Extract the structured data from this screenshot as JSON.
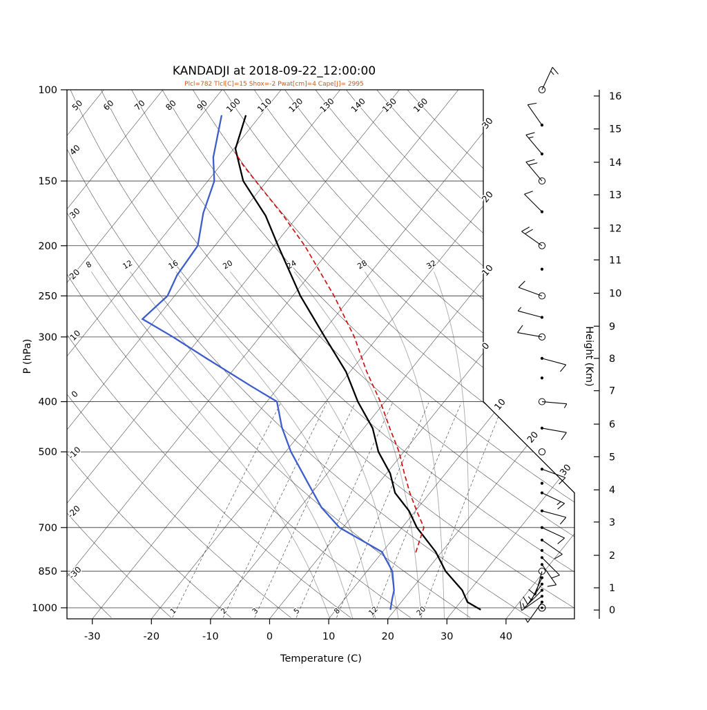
{
  "title": "KANDADJI at 2018-09-22_12:00:00",
  "station": "KANDADJI",
  "datetime": "2018-09-22_12:00:00",
  "params_line": "Plcl=782 Tlcl[C]=15 Shox=-2 Pwat[cm]=4 Cape[J]= 2995",
  "indices": {
    "plcl": 782,
    "tlcl_c": 15,
    "shox": -2,
    "pwat_cm": 4,
    "cape_j": 2995
  },
  "colors": {
    "temperature": "#000000",
    "dewpoint": "#3c5ccc",
    "parcel": "#cc1111",
    "params_text": "#c05a1e",
    "moist_adiabat": "#a8a8a8",
    "grid": "#3c3c3c"
  },
  "axes": {
    "pressure": {
      "title": "P (hPa)",
      "ticks": [
        100,
        150,
        200,
        250,
        300,
        400,
        500,
        700,
        850,
        1000
      ]
    },
    "temperature": {
      "title": "Temperature (C)",
      "ticks": [
        -30,
        -20,
        -10,
        0,
        10,
        20,
        30,
        40
      ]
    },
    "height": {
      "title": "Height (Km)",
      "ticks": [
        [
          0,
          1010
        ],
        [
          1,
          915
        ],
        [
          2,
          792
        ],
        [
          3,
          683
        ],
        [
          4,
          592
        ],
        [
          5,
          511
        ],
        [
          6,
          442
        ],
        [
          7,
          381
        ],
        [
          8,
          330
        ],
        [
          9,
          286
        ],
        [
          10,
          247
        ],
        [
          11,
          213
        ],
        [
          12,
          185
        ],
        [
          13,
          159.5
        ],
        [
          14,
          138
        ],
        [
          15,
          119
        ],
        [
          16,
          102.8
        ]
      ]
    },
    "isotherms": {
      "step": 10,
      "range": [
        -120,
        40
      ],
      "right_edge": [
        {
          "value": -30,
          "label": "30"
        },
        {
          "value": -20,
          "label": "20"
        },
        {
          "value": -10,
          "label": "10"
        },
        {
          "value": 0,
          "label": "0"
        }
      ],
      "diagonal_edge": [
        {
          "value": 10,
          "label": "10"
        },
        {
          "value": 20,
          "label": "20"
        },
        {
          "value": 30,
          "label": "30"
        }
      ]
    },
    "dry_adiabats": {
      "values": [
        -30,
        -20,
        -10,
        0,
        10,
        20,
        30,
        40,
        50,
        60,
        70,
        80,
        90,
        100,
        110,
        120,
        130,
        140,
        150,
        160
      ]
    },
    "moist_adiabats": {
      "values": [
        8,
        12,
        16,
        20,
        24,
        28,
        32
      ]
    },
    "mixing_ratio": {
      "values": [
        1,
        2,
        3,
        5,
        8,
        12,
        20
      ]
    }
  },
  "chart_data": {
    "type": "line",
    "subtype": "skewt-logp-sounding",
    "title": "KANDADJI at 2018-09-22_12:00:00",
    "xlabel": "Temperature (C)",
    "ylabel": "P (hPa)",
    "y2label": "Height (Km)",
    "xlim": [
      -30,
      40
    ],
    "ylim_hpa": [
      1050,
      100
    ],
    "series": [
      {
        "name": "temperature",
        "units": "C vs hPa",
        "color": "#000000",
        "width": 2.3,
        "dash": null,
        "points": [
          [
            1009,
            34.5
          ],
          [
            975,
            31.2
          ],
          [
            925,
            28.7
          ],
          [
            850,
            23.3
          ],
          [
            780,
            19.0
          ],
          [
            700,
            12.5
          ],
          [
            650,
            8.9
          ],
          [
            600,
            4.1
          ],
          [
            550,
            0.6
          ],
          [
            500,
            -4.3
          ],
          [
            450,
            -8.5
          ],
          [
            400,
            -14.6
          ],
          [
            350,
            -20.7
          ],
          [
            300,
            -29.0
          ],
          [
            250,
            -38.7
          ],
          [
            200,
            -49.3
          ],
          [
            175,
            -55.5
          ],
          [
            150,
            -64.0
          ],
          [
            130,
            -69.7
          ],
          [
            112,
            -72.5
          ]
        ]
      },
      {
        "name": "dewpoint",
        "units": "C vs hPa",
        "color": "#3c5ccc",
        "width": 2.3,
        "dash": null,
        "points": [
          [
            1009,
            19.2
          ],
          [
            960,
            18.0
          ],
          [
            926,
            17.2
          ],
          [
            850,
            14.3
          ],
          [
            780,
            9.9
          ],
          [
            700,
            -0.6
          ],
          [
            640,
            -6.4
          ],
          [
            573,
            -12.1
          ],
          [
            500,
            -19.1
          ],
          [
            448,
            -24.0
          ],
          [
            400,
            -28.3
          ],
          [
            374,
            -34.6
          ],
          [
            330,
            -46.1
          ],
          [
            300,
            -54.7
          ],
          [
            277,
            -62.3
          ],
          [
            250,
            -61.2
          ],
          [
            228,
            -62.4
          ],
          [
            200,
            -62.9
          ],
          [
            173,
            -66.4
          ],
          [
            150,
            -68.9
          ],
          [
            135,
            -72.3
          ],
          [
            112,
            -76.6
          ]
        ]
      },
      {
        "name": "parcel",
        "units": "C vs hPa",
        "color": "#cc1111",
        "width": 1.7,
        "dash": "7,4",
        "points": [
          [
            782,
            15.7
          ],
          [
            740,
            14.7
          ],
          [
            700,
            13.7
          ],
          [
            650,
            10.2
          ],
          [
            600,
            6.6
          ],
          [
            550,
            3.0
          ],
          [
            500,
            -0.8
          ],
          [
            450,
            -5.6
          ],
          [
            400,
            -10.8
          ],
          [
            350,
            -17.2
          ],
          [
            300,
            -24.0
          ],
          [
            250,
            -33.0
          ],
          [
            200,
            -44.8
          ],
          [
            175,
            -52.5
          ],
          [
            150,
            -61.9
          ],
          [
            140,
            -66.1
          ],
          [
            132,
            -69.3
          ]
        ]
      }
    ],
    "winds": [
      {
        "p": 100,
        "marker": "circle",
        "dir": 25,
        "full": 1,
        "half": 1
      },
      {
        "p": 117,
        "marker": "dot",
        "dir": -35,
        "full": 1,
        "half": 0
      },
      {
        "p": 133,
        "marker": "dot",
        "dir": -40,
        "full": 1,
        "half": 1
      },
      {
        "p": 150,
        "marker": "circle",
        "dir": -40,
        "full": 2,
        "half": 0
      },
      {
        "p": 172,
        "marker": "dot",
        "dir": -45,
        "full": 1,
        "half": 0
      },
      {
        "p": 200,
        "marker": "circle",
        "dir": -55,
        "full": 2,
        "half": 0
      },
      {
        "p": 222,
        "marker": "dot",
        "dir": 0,
        "full": 0,
        "half": 0
      },
      {
        "p": 250,
        "marker": "circle",
        "dir": -70,
        "full": 1,
        "half": 0
      },
      {
        "p": 275,
        "marker": "dot",
        "dir": -75,
        "full": 0,
        "half": 1
      },
      {
        "p": 300,
        "marker": "circle",
        "dir": -80,
        "full": 1,
        "half": 0
      },
      {
        "p": 330,
        "marker": "dot",
        "dir": 105,
        "full": 1,
        "half": 0
      },
      {
        "p": 360,
        "marker": "dot",
        "dir": 0,
        "full": 0,
        "half": 0
      },
      {
        "p": 400,
        "marker": "circle",
        "dir": 95,
        "full": 0,
        "half": 1
      },
      {
        "p": 450,
        "marker": "dot",
        "dir": 100,
        "full": 1,
        "half": 0
      },
      {
        "p": 500,
        "marker": "circle",
        "dir": 0,
        "full": 0,
        "half": 0
      },
      {
        "p": 540,
        "marker": "dot",
        "dir": 110,
        "full": 1,
        "half": 0
      },
      {
        "p": 575,
        "marker": "dot",
        "dir": 0,
        "full": 0,
        "half": 0
      },
      {
        "p": 600,
        "marker": "dot",
        "dir": 115,
        "full": 1,
        "half": 1
      },
      {
        "p": 650,
        "marker": "dot",
        "dir": 105,
        "full": 1,
        "half": 0
      },
      {
        "p": 700,
        "marker": "dot",
        "dir": 115,
        "full": 1,
        "half": 0
      },
      {
        "p": 740,
        "marker": "dot",
        "dir": 125,
        "full": 1,
        "half": 0
      },
      {
        "p": 775,
        "marker": "dot",
        "dir": 0,
        "full": 0,
        "half": 0
      },
      {
        "p": 800,
        "marker": "dot",
        "dir": 135,
        "full": 1,
        "half": 0
      },
      {
        "p": 825,
        "marker": "dot",
        "dir": 145,
        "full": 1,
        "half": 0
      },
      {
        "p": 850,
        "marker": "circle",
        "dir": 195,
        "full": 1,
        "half": 0
      },
      {
        "p": 875,
        "marker": "dot",
        "dir": 205,
        "full": 0,
        "half": 1
      },
      {
        "p": 900,
        "marker": "dot",
        "dir": 215,
        "full": 1,
        "half": 0
      },
      {
        "p": 925,
        "marker": "dot",
        "dir": 225,
        "full": 0,
        "half": 1
      },
      {
        "p": 950,
        "marker": "dot",
        "dir": 235,
        "full": 1,
        "half": 0
      },
      {
        "p": 975,
        "marker": "dot",
        "dir": 215,
        "full": 0,
        "half": 1
      },
      {
        "p": 1000,
        "marker": "circle2",
        "dir": 0,
        "full": 0,
        "half": 0
      }
    ]
  }
}
